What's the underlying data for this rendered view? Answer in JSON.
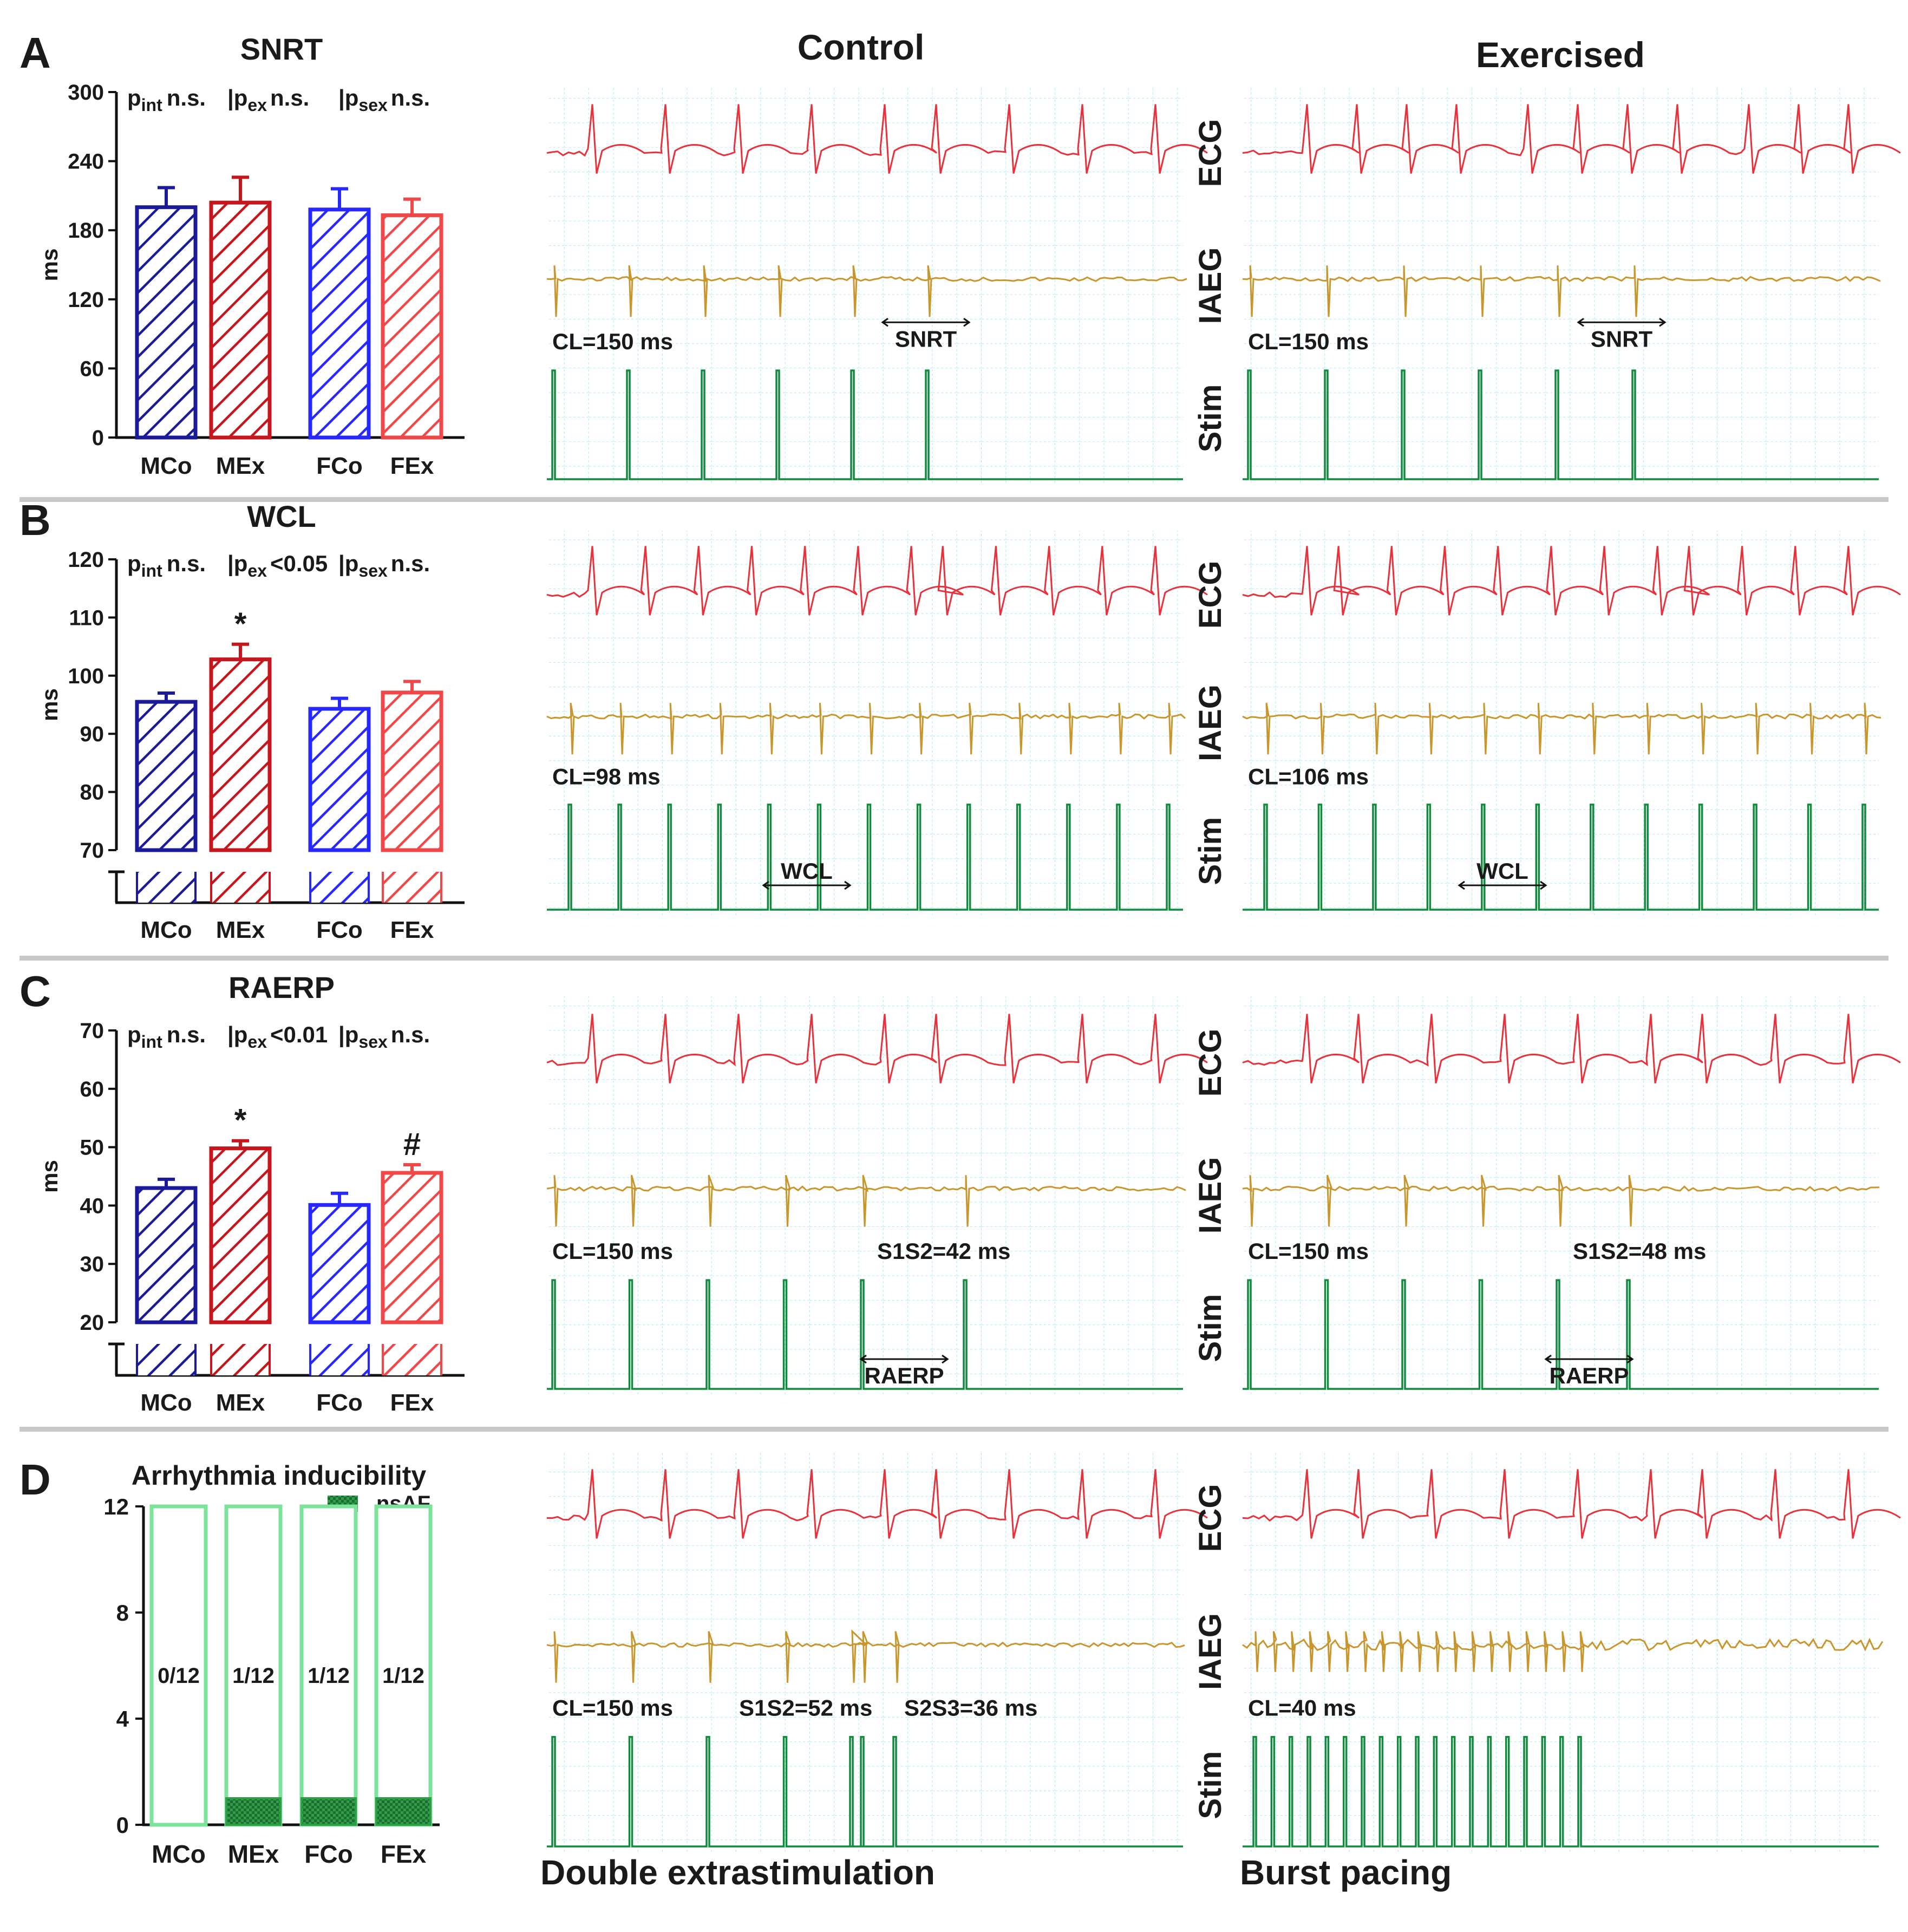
{
  "figure": {
    "column_titles": {
      "control": "Control",
      "exercised": "Exercised"
    },
    "bottom_captions": {
      "control": "Double extrastimulation",
      "exercised": "Burst pacing"
    },
    "trace_labels": {
      "ecg": "ECG",
      "iaeg": "IAEG",
      "stim": "Stim"
    },
    "colors": {
      "mco": "#1b1b9a",
      "mex": "#c4161c",
      "fco": "#2727ff",
      "fex": "#f04848",
      "ecg": "#e8313b",
      "iaeg": "#c9962d",
      "stim": "#0f8c3c",
      "grid": "#8ee3f2",
      "separator": "#c8c8c8",
      "nsaf": "#2e9e48",
      "nsaf_outline": "#7be39a"
    }
  },
  "chart_data": [
    {
      "panel": "A",
      "type": "bar",
      "title": "SNRT",
      "ylabel": "ms",
      "ylim": [
        0,
        300
      ],
      "yticks": [
        0,
        60,
        120,
        180,
        240,
        300
      ],
      "categories": [
        "MCo",
        "MEx",
        "FCo",
        "FEx"
      ],
      "values": [
        200,
        204,
        198,
        193
      ],
      "errors": [
        17,
        22,
        18,
        14
      ],
      "stats": {
        "pint": "n.s.",
        "pex": "n.s.",
        "psex": "n.s."
      },
      "annotations": [
        "",
        "",
        "",
        ""
      ],
      "traces": {
        "control": {
          "cl": "CL=150 ms",
          "marker_label": "SNRT"
        },
        "exercised": {
          "cl": "CL=150 ms",
          "marker_label": "SNRT"
        }
      }
    },
    {
      "panel": "B",
      "type": "bar",
      "title": "WCL",
      "ylabel": "ms",
      "ylim": [
        70,
        120
      ],
      "axis_break": true,
      "yticks": [
        70,
        80,
        90,
        100,
        110,
        120
      ],
      "categories": [
        "MCo",
        "MEx",
        "FCo",
        "FEx"
      ],
      "values": [
        95.5,
        102.8,
        94.3,
        97.1
      ],
      "errors": [
        1.5,
        2.6,
        1.8,
        1.9
      ],
      "stats": {
        "pint": "n.s.",
        "pex": "<0.05",
        "psex": "n.s."
      },
      "annotations": [
        "",
        "*",
        "",
        ""
      ],
      "traces": {
        "control": {
          "cl": "CL=98 ms",
          "marker_label": "WCL"
        },
        "exercised": {
          "cl": "CL=106 ms",
          "marker_label": "WCL"
        }
      }
    },
    {
      "panel": "C",
      "type": "bar",
      "title": "RAERP",
      "ylabel": "ms",
      "ylim": [
        20,
        70
      ],
      "axis_break": true,
      "yticks": [
        20,
        30,
        40,
        50,
        60,
        70
      ],
      "categories": [
        "MCo",
        "MEx",
        "FCo",
        "FEx"
      ],
      "values": [
        43,
        49.8,
        40.1,
        45.6
      ],
      "errors": [
        1.5,
        1.3,
        2.0,
        1.4
      ],
      "stats": {
        "pint": "n.s.",
        "pex": "<0.01",
        "psex": "n.s."
      },
      "annotations": [
        "",
        "*",
        "",
        "#"
      ],
      "traces": {
        "control": {
          "cl": "CL=150 ms",
          "s1s2": "S1S2=42 ms",
          "marker_label": "RAERP"
        },
        "exercised": {
          "cl": "CL=150 ms",
          "s1s2": "S1S2=48 ms",
          "marker_label": "RAERP"
        }
      }
    },
    {
      "panel": "D",
      "type": "bar",
      "title": "Arrhythmia inducibility",
      "legend": "nsAF",
      "ylim": [
        0,
        12
      ],
      "yticks": [
        0,
        4,
        8,
        12
      ],
      "categories": [
        "MCo",
        "MEx",
        "FCo",
        "FEx"
      ],
      "totals": [
        12,
        12,
        12,
        12
      ],
      "values": [
        0,
        1,
        1,
        1
      ],
      "ratio_labels": [
        "0/12",
        "1/12",
        "1/12",
        "1/12"
      ],
      "traces": {
        "control": {
          "cl": "CL=150 ms",
          "s1s2": "S1S2=52 ms",
          "s2s3": "S2S3=36 ms"
        },
        "exercised": {
          "cl": "CL=40 ms"
        }
      }
    }
  ]
}
